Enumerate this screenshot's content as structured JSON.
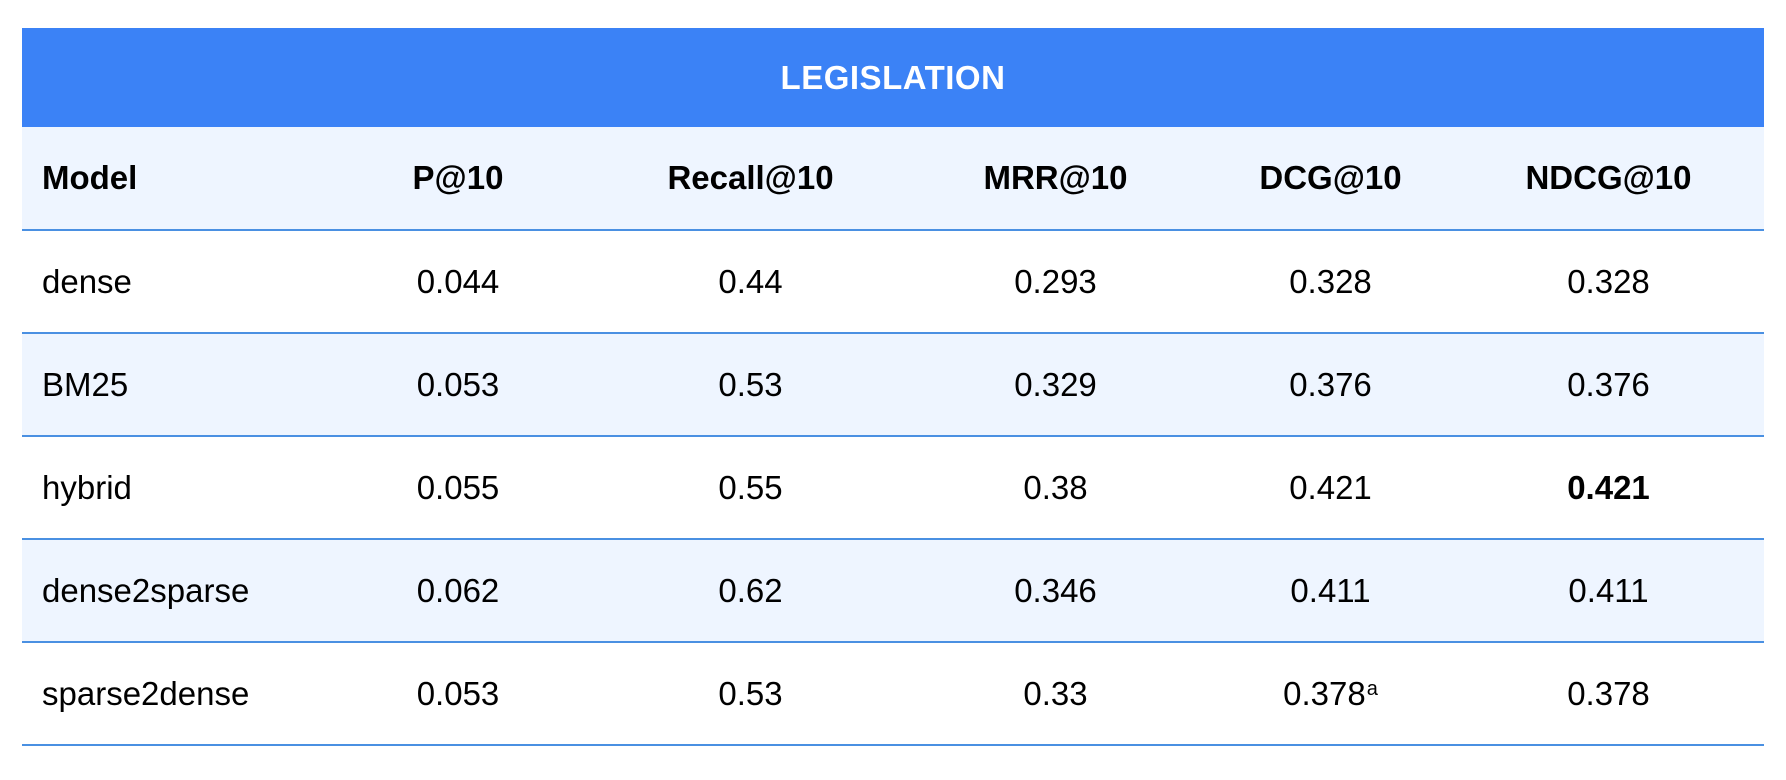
{
  "chart_data": {
    "type": "table",
    "title": "LEGISLATION",
    "columns": [
      "Model",
      "P@10",
      "Recall@10",
      "MRR@10",
      "DCG@10",
      "NDCG@10"
    ],
    "rows": [
      [
        "dense",
        "0.044",
        "0.44",
        "0.293",
        "0.328",
        "0.328"
      ],
      [
        "BM25",
        "0.053",
        "0.53",
        "0.329",
        "0.376",
        "0.376"
      ],
      [
        "hybrid",
        "0.055",
        "0.55",
        "0.38",
        "0.421",
        "0.421"
      ],
      [
        "dense2sparse",
        "0.062",
        "0.62",
        "0.346",
        "0.411",
        "0.411"
      ],
      [
        "sparse2dense",
        "0.053",
        "0.53",
        "0.33",
        "0.378",
        "0.378"
      ]
    ],
    "bold_cells": [
      {
        "row": 2,
        "col": 5
      }
    ],
    "footnote_marks": [
      {
        "row": 4,
        "col": 4,
        "mark": "a"
      }
    ]
  },
  "colors": {
    "title_bg": "#3b82f6",
    "title_text": "#ffffff",
    "header_bg": "#eef5ff",
    "row_alt_bg": "#eef5ff",
    "row_bg": "#ffffff",
    "divider": "#4a90e2"
  }
}
